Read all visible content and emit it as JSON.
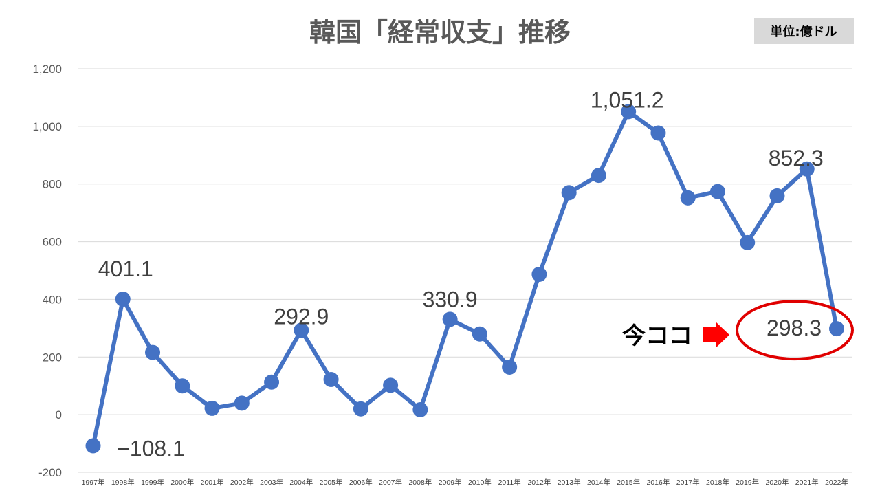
{
  "chart_data": {
    "type": "line",
    "title": "韓国「経常収支」推移",
    "unit_label": "単位:億ドル",
    "x": [
      "1997年",
      "1998年",
      "1999年",
      "2000年",
      "2001年",
      "2002年",
      "2003年",
      "2004年",
      "2005年",
      "2006年",
      "2007年",
      "2008年",
      "2009年",
      "2010年",
      "2011年",
      "2012年",
      "2013年",
      "2014年",
      "2015年",
      "2016年",
      "2017年",
      "2018年",
      "2019年",
      "2020年",
      "2021年",
      "2022年"
    ],
    "series": [
      {
        "values": [
          -108.1,
          401.1,
          216,
          100,
          22,
          40,
          113,
          292.9,
          122,
          20,
          102,
          17,
          330.9,
          280,
          165,
          487,
          770,
          830,
          1051.2,
          977,
          752,
          774,
          597,
          759,
          852.3,
          298.3
        ],
        "color": "#4472c4"
      }
    ],
    "data_labels": [
      {
        "index": 0,
        "text": "−108.1",
        "color": "#e00000"
      },
      {
        "index": 1,
        "text": "401.1"
      },
      {
        "index": 7,
        "text": "292.9"
      },
      {
        "index": 12,
        "text": "330.9"
      },
      {
        "index": 18,
        "text": "1,051.2"
      },
      {
        "index": 24,
        "text": "852.3"
      },
      {
        "index": 25,
        "text": "298.3"
      }
    ],
    "yticks": [
      {
        "value": 1200,
        "label": "1,200"
      },
      {
        "value": 1000,
        "label": "1,000"
      },
      {
        "value": 800,
        "label": "800"
      },
      {
        "value": 600,
        "label": "600"
      },
      {
        "value": 400,
        "label": "400"
      },
      {
        "value": 200,
        "label": "200"
      },
      {
        "value": 0,
        "label": "0"
      },
      {
        "value": -200,
        "label": "-200"
      }
    ],
    "ylim": [
      -200,
      1200
    ],
    "grid": true,
    "annotation": {
      "text": "今ココ",
      "target_index": 25,
      "arrow_color": "#ff0000",
      "circle_color": "#e00000"
    }
  }
}
